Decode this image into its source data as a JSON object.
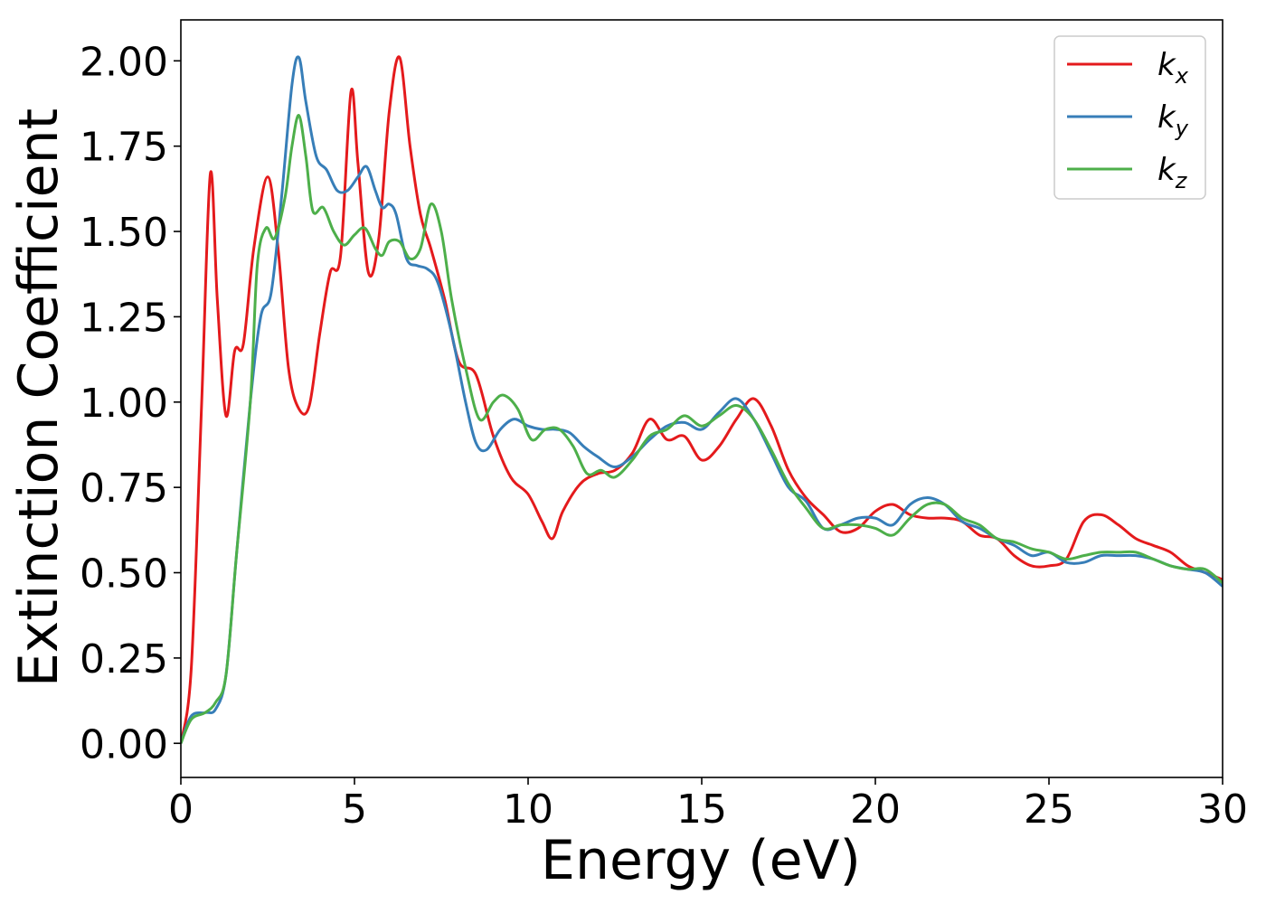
{
  "chart_data": {
    "type": "line",
    "xlabel": "Energy (eV)",
    "ylabel": "Extinction Coefficient",
    "xlim": [
      0,
      30
    ],
    "ylim": [
      -0.1,
      2.12
    ],
    "xticks": [
      0,
      5,
      10,
      15,
      20,
      25,
      30
    ],
    "xtick_labels": [
      "0",
      "5",
      "10",
      "15",
      "20",
      "25",
      "30"
    ],
    "yticks": [
      0,
      0.25,
      0.5,
      0.75,
      1.0,
      1.25,
      1.5,
      1.75,
      2.0
    ],
    "ytick_labels": [
      "0.00",
      "0.25",
      "0.50",
      "0.75",
      "1.00",
      "1.25",
      "1.50",
      "1.75",
      "2.00"
    ],
    "grid": false,
    "legend_position": "top-right",
    "series": [
      {
        "name": "k_x",
        "label_main": "k",
        "label_sub": "x",
        "color": "#e41a1c",
        "points": [
          [
            0,
            0.0
          ],
          [
            0.3,
            0.22
          ],
          [
            0.6,
            1.0
          ],
          [
            0.85,
            1.67
          ],
          [
            1.05,
            1.3
          ],
          [
            1.3,
            0.96
          ],
          [
            1.55,
            1.15
          ],
          [
            1.8,
            1.17
          ],
          [
            2.1,
            1.45
          ],
          [
            2.5,
            1.66
          ],
          [
            2.8,
            1.45
          ],
          [
            3.1,
            1.1
          ],
          [
            3.4,
            0.98
          ],
          [
            3.7,
            0.99
          ],
          [
            4.0,
            1.2
          ],
          [
            4.3,
            1.38
          ],
          [
            4.6,
            1.43
          ],
          [
            4.9,
            1.91
          ],
          [
            5.1,
            1.7
          ],
          [
            5.4,
            1.38
          ],
          [
            5.7,
            1.48
          ],
          [
            6.0,
            1.85
          ],
          [
            6.3,
            2.01
          ],
          [
            6.6,
            1.75
          ],
          [
            6.9,
            1.55
          ],
          [
            7.2,
            1.45
          ],
          [
            7.6,
            1.3
          ],
          [
            8.0,
            1.12
          ],
          [
            8.5,
            1.08
          ],
          [
            9.0,
            0.9
          ],
          [
            9.5,
            0.78
          ],
          [
            10.0,
            0.73
          ],
          [
            10.4,
            0.65
          ],
          [
            10.7,
            0.6
          ],
          [
            11.0,
            0.68
          ],
          [
            11.5,
            0.76
          ],
          [
            12.0,
            0.79
          ],
          [
            12.5,
            0.8
          ],
          [
            13.0,
            0.85
          ],
          [
            13.5,
            0.95
          ],
          [
            14.0,
            0.89
          ],
          [
            14.5,
            0.9
          ],
          [
            15.0,
            0.83
          ],
          [
            15.5,
            0.87
          ],
          [
            16.0,
            0.95
          ],
          [
            16.5,
            1.01
          ],
          [
            17.0,
            0.93
          ],
          [
            17.5,
            0.8
          ],
          [
            18.0,
            0.72
          ],
          [
            18.5,
            0.67
          ],
          [
            19.0,
            0.62
          ],
          [
            19.5,
            0.63
          ],
          [
            20.0,
            0.68
          ],
          [
            20.5,
            0.7
          ],
          [
            21.0,
            0.67
          ],
          [
            21.5,
            0.66
          ],
          [
            22.0,
            0.66
          ],
          [
            22.5,
            0.65
          ],
          [
            23.0,
            0.61
          ],
          [
            23.5,
            0.6
          ],
          [
            24.0,
            0.55
          ],
          [
            24.5,
            0.52
          ],
          [
            25.0,
            0.52
          ],
          [
            25.5,
            0.54
          ],
          [
            26.0,
            0.65
          ],
          [
            26.5,
            0.67
          ],
          [
            27.0,
            0.64
          ],
          [
            27.5,
            0.6
          ],
          [
            28.0,
            0.58
          ],
          [
            28.5,
            0.56
          ],
          [
            29.0,
            0.52
          ],
          [
            29.5,
            0.5
          ],
          [
            30.0,
            0.48
          ]
        ]
      },
      {
        "name": "k_y",
        "label_main": "k",
        "label_sub": "y",
        "color": "#377eb8",
        "points": [
          [
            0,
            0.0
          ],
          [
            0.3,
            0.08
          ],
          [
            0.7,
            0.09
          ],
          [
            1.0,
            0.1
          ],
          [
            1.3,
            0.2
          ],
          [
            1.6,
            0.55
          ],
          [
            2.0,
            1.0
          ],
          [
            2.3,
            1.25
          ],
          [
            2.6,
            1.32
          ],
          [
            2.9,
            1.6
          ],
          [
            3.2,
            1.93
          ],
          [
            3.4,
            2.01
          ],
          [
            3.6,
            1.88
          ],
          [
            3.9,
            1.72
          ],
          [
            4.2,
            1.68
          ],
          [
            4.5,
            1.62
          ],
          [
            4.8,
            1.62
          ],
          [
            5.1,
            1.66
          ],
          [
            5.35,
            1.69
          ],
          [
            5.6,
            1.62
          ],
          [
            5.8,
            1.57
          ],
          [
            6.0,
            1.58
          ],
          [
            6.2,
            1.55
          ],
          [
            6.5,
            1.42
          ],
          [
            6.8,
            1.4
          ],
          [
            7.1,
            1.39
          ],
          [
            7.4,
            1.35
          ],
          [
            7.8,
            1.2
          ],
          [
            8.2,
            1.0
          ],
          [
            8.5,
            0.88
          ],
          [
            8.8,
            0.86
          ],
          [
            9.2,
            0.92
          ],
          [
            9.6,
            0.95
          ],
          [
            10.0,
            0.93
          ],
          [
            10.4,
            0.92
          ],
          [
            10.8,
            0.92
          ],
          [
            11.2,
            0.91
          ],
          [
            11.6,
            0.87
          ],
          [
            12.0,
            0.84
          ],
          [
            12.5,
            0.81
          ],
          [
            13.0,
            0.84
          ],
          [
            13.5,
            0.89
          ],
          [
            14.0,
            0.93
          ],
          [
            14.5,
            0.94
          ],
          [
            15.0,
            0.92
          ],
          [
            15.5,
            0.97
          ],
          [
            16.0,
            1.01
          ],
          [
            16.5,
            0.95
          ],
          [
            17.0,
            0.85
          ],
          [
            17.5,
            0.75
          ],
          [
            18.0,
            0.71
          ],
          [
            18.5,
            0.63
          ],
          [
            19.0,
            0.64
          ],
          [
            19.5,
            0.66
          ],
          [
            20.0,
            0.66
          ],
          [
            20.5,
            0.64
          ],
          [
            21.0,
            0.7
          ],
          [
            21.5,
            0.72
          ],
          [
            22.0,
            0.7
          ],
          [
            22.5,
            0.65
          ],
          [
            23.0,
            0.63
          ],
          [
            23.5,
            0.6
          ],
          [
            24.0,
            0.58
          ],
          [
            24.5,
            0.55
          ],
          [
            25.0,
            0.56
          ],
          [
            25.5,
            0.53
          ],
          [
            26.0,
            0.53
          ],
          [
            26.5,
            0.55
          ],
          [
            27.0,
            0.55
          ],
          [
            27.5,
            0.55
          ],
          [
            28.0,
            0.54
          ],
          [
            28.5,
            0.52
          ],
          [
            29.0,
            0.51
          ],
          [
            29.5,
            0.5
          ],
          [
            30.0,
            0.46
          ]
        ]
      },
      {
        "name": "k_z",
        "label_main": "k",
        "label_sub": "z",
        "color": "#4daf4a",
        "points": [
          [
            0,
            0.0
          ],
          [
            0.3,
            0.07
          ],
          [
            0.7,
            0.09
          ],
          [
            1.0,
            0.12
          ],
          [
            1.3,
            0.2
          ],
          [
            1.6,
            0.55
          ],
          [
            2.0,
            1.0
          ],
          [
            2.2,
            1.4
          ],
          [
            2.45,
            1.51
          ],
          [
            2.7,
            1.48
          ],
          [
            3.0,
            1.6
          ],
          [
            3.2,
            1.75
          ],
          [
            3.4,
            1.84
          ],
          [
            3.6,
            1.72
          ],
          [
            3.8,
            1.56
          ],
          [
            4.1,
            1.57
          ],
          [
            4.4,
            1.5
          ],
          [
            4.7,
            1.46
          ],
          [
            5.0,
            1.49
          ],
          [
            5.3,
            1.51
          ],
          [
            5.6,
            1.45
          ],
          [
            5.8,
            1.43
          ],
          [
            6.0,
            1.47
          ],
          [
            6.3,
            1.47
          ],
          [
            6.6,
            1.42
          ],
          [
            6.9,
            1.45
          ],
          [
            7.2,
            1.58
          ],
          [
            7.5,
            1.5
          ],
          [
            7.8,
            1.3
          ],
          [
            8.2,
            1.1
          ],
          [
            8.6,
            0.95
          ],
          [
            9.0,
            1.0
          ],
          [
            9.3,
            1.02
          ],
          [
            9.7,
            0.98
          ],
          [
            10.1,
            0.89
          ],
          [
            10.5,
            0.92
          ],
          [
            10.9,
            0.92
          ],
          [
            11.3,
            0.87
          ],
          [
            11.7,
            0.79
          ],
          [
            12.1,
            0.8
          ],
          [
            12.5,
            0.78
          ],
          [
            13.0,
            0.83
          ],
          [
            13.5,
            0.9
          ],
          [
            14.0,
            0.92
          ],
          [
            14.5,
            0.96
          ],
          [
            15.0,
            0.93
          ],
          [
            15.5,
            0.96
          ],
          [
            16.0,
            0.99
          ],
          [
            16.5,
            0.95
          ],
          [
            17.0,
            0.86
          ],
          [
            17.5,
            0.76
          ],
          [
            18.0,
            0.69
          ],
          [
            18.5,
            0.63
          ],
          [
            19.0,
            0.64
          ],
          [
            19.5,
            0.64
          ],
          [
            20.0,
            0.63
          ],
          [
            20.5,
            0.61
          ],
          [
            21.0,
            0.66
          ],
          [
            21.5,
            0.7
          ],
          [
            22.0,
            0.7
          ],
          [
            22.5,
            0.66
          ],
          [
            23.0,
            0.64
          ],
          [
            23.5,
            0.6
          ],
          [
            24.0,
            0.59
          ],
          [
            24.5,
            0.57
          ],
          [
            25.0,
            0.56
          ],
          [
            25.5,
            0.54
          ],
          [
            26.0,
            0.55
          ],
          [
            26.5,
            0.56
          ],
          [
            27.0,
            0.56
          ],
          [
            27.5,
            0.56
          ],
          [
            28.0,
            0.54
          ],
          [
            28.5,
            0.52
          ],
          [
            29.0,
            0.51
          ],
          [
            29.5,
            0.51
          ],
          [
            30.0,
            0.47
          ]
        ]
      }
    ]
  }
}
